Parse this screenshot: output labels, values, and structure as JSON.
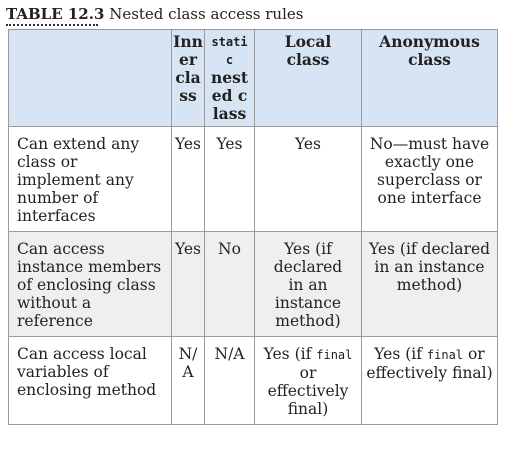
{
  "caption": {
    "number": "TABLE 12.3",
    "title": "Nested class access rules"
  },
  "table": {
    "headers": {
      "blank": "",
      "inner_class": "Inner class",
      "static_nested_class_code": "static",
      "static_nested_class_rest": "nested class",
      "local_class": "Local class",
      "anonymous_class": "Anonymous class"
    },
    "rows": [
      {
        "description": "Can extend any class or implement any number of interfaces",
        "inner": "Yes",
        "static_nested": "Yes",
        "local": "Yes",
        "anonymous": "No—must have exactly one superclass or one interface"
      },
      {
        "description": "Can access instance members of enclosing class without a reference",
        "inner": "Yes",
        "static_nested": "No",
        "local": "Yes (if declared in an instance method)",
        "anonymous": "Yes (if declared in an instance method)"
      },
      {
        "description": "Can access local variables of enclosing method",
        "inner": "N/A",
        "static_nested": "N/A",
        "local_pre": "Yes (if",
        "local_code": "final",
        "local_post": "or effectively final)",
        "anonymous_pre": "Yes (if",
        "anonymous_code": "final",
        "anonymous_post": "or effectively final)"
      }
    ]
  }
}
